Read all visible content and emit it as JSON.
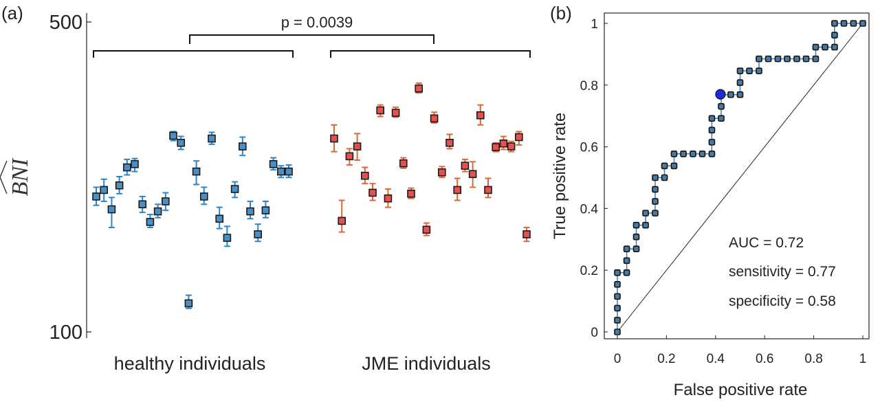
{
  "chart_data": [
    {
      "panel_label": "(a)",
      "type": "scatter",
      "ylabel": "BNI",
      "yscale": "log",
      "ylim": [
        100,
        500
      ],
      "yticks": [
        "100",
        "500"
      ],
      "categories": [
        "healthy individuals",
        "JME individuals"
      ],
      "comparison": "p = 0.0039",
      "colors": {
        "healthy": "#4a90c4",
        "healthy_bar": "#2a86cc",
        "jme": "#e55050",
        "jme_bar": "#dd6633"
      },
      "series": [
        {
          "group": "healthy",
          "points": [
            {
              "y": 202,
              "lo": 193,
              "hi": 212
            },
            {
              "y": 209,
              "lo": 197,
              "hi": 221
            },
            {
              "y": 189,
              "lo": 172,
              "hi": 201
            },
            {
              "y": 214,
              "lo": 205,
              "hi": 224
            },
            {
              "y": 235,
              "lo": 226,
              "hi": 245
            },
            {
              "y": 239,
              "lo": 230,
              "hi": 246
            },
            {
              "y": 194,
              "lo": 186,
              "hi": 202
            },
            {
              "y": 177,
              "lo": 172,
              "hi": 184
            },
            {
              "y": 187,
              "lo": 181,
              "hi": 194
            },
            {
              "y": 197,
              "lo": 188,
              "hi": 206
            },
            {
              "y": 277,
              "lo": 270,
              "hi": 283
            },
            {
              "y": 267,
              "lo": 258,
              "hi": 276
            },
            {
              "y": 116,
              "lo": 113,
              "hi": 121
            },
            {
              "y": 230,
              "lo": 215,
              "hi": 243
            },
            {
              "y": 202,
              "lo": 194,
              "hi": 212
            },
            {
              "y": 273,
              "lo": 265,
              "hi": 282
            },
            {
              "y": 180,
              "lo": 171,
              "hi": 191
            },
            {
              "y": 163,
              "lo": 156,
              "hi": 173
            },
            {
              "y": 210,
              "lo": 201,
              "hi": 218
            },
            {
              "y": 262,
              "lo": 250,
              "hi": 275
            },
            {
              "y": 187,
              "lo": 180,
              "hi": 197
            },
            {
              "y": 166,
              "lo": 160,
              "hi": 175
            },
            {
              "y": 188,
              "lo": 181,
              "hi": 197
            },
            {
              "y": 239,
              "lo": 232,
              "hi": 247
            },
            {
              "y": 230,
              "lo": 223,
              "hi": 237
            },
            {
              "y": 230,
              "lo": 223,
              "hi": 238
            }
          ]
        },
        {
          "group": "jme",
          "points": [
            {
              "y": 273,
              "lo": 255,
              "hi": 293
            },
            {
              "y": 178,
              "lo": 168,
              "hi": 198
            },
            {
              "y": 249,
              "lo": 238,
              "hi": 259
            },
            {
              "y": 262,
              "lo": 244,
              "hi": 280
            },
            {
              "y": 225,
              "lo": 216,
              "hi": 235
            },
            {
              "y": 206,
              "lo": 198,
              "hi": 216
            },
            {
              "y": 316,
              "lo": 306,
              "hi": 325
            },
            {
              "y": 200,
              "lo": 191,
              "hi": 210
            },
            {
              "y": 312,
              "lo": 305,
              "hi": 321
            },
            {
              "y": 240,
              "lo": 234,
              "hi": 247
            },
            {
              "y": 205,
              "lo": 200,
              "hi": 211
            },
            {
              "y": 354,
              "lo": 346,
              "hi": 364
            },
            {
              "y": 170,
              "lo": 165,
              "hi": 176
            },
            {
              "y": 303,
              "lo": 296,
              "hi": 313
            },
            {
              "y": 229,
              "lo": 223,
              "hi": 236
            },
            {
              "y": 267,
              "lo": 259,
              "hi": 279
            },
            {
              "y": 209,
              "lo": 198,
              "hi": 222
            },
            {
              "y": 237,
              "lo": 230,
              "hi": 245
            },
            {
              "y": 227,
              "lo": 212,
              "hi": 242
            },
            {
              "y": 308,
              "lo": 293,
              "hi": 325
            },
            {
              "y": 209,
              "lo": 201,
              "hi": 222
            },
            {
              "y": 261,
              "lo": 255,
              "hi": 267
            },
            {
              "y": 266,
              "lo": 258,
              "hi": 276
            },
            {
              "y": 262,
              "lo": 255,
              "hi": 269
            },
            {
              "y": 275,
              "lo": 264,
              "hi": 283
            },
            {
              "y": 166,
              "lo": 160,
              "hi": 172
            }
          ]
        }
      ]
    },
    {
      "panel_label": "(b)",
      "type": "line",
      "xlabel": "False positive rate",
      "ylabel": "True positive rate",
      "xlim": [
        0,
        1
      ],
      "ylim": [
        0,
        1
      ],
      "xticks": [
        "0",
        "0.2",
        "0.4",
        "0.6",
        "0.8",
        "1"
      ],
      "yticks": [
        "0",
        "0.2",
        "0.4",
        "0.6",
        "0.8",
        "1"
      ],
      "marker_color": "#4a7aa0",
      "highlight_color": "#1a2ee0",
      "highlight_point": {
        "x": 0.42,
        "y": 0.77
      },
      "annotations": [
        "AUC = 0.72",
        "sensitivity = 0.77",
        "specificity = 0.58"
      ],
      "roc": [
        [
          0,
          0
        ],
        [
          0,
          0.038
        ],
        [
          0,
          0.077
        ],
        [
          0,
          0.115
        ],
        [
          0,
          0.154
        ],
        [
          0,
          0.192
        ],
        [
          0.038,
          0.192
        ],
        [
          0.038,
          0.231
        ],
        [
          0.038,
          0.269
        ],
        [
          0.077,
          0.269
        ],
        [
          0.077,
          0.308
        ],
        [
          0.077,
          0.346
        ],
        [
          0.115,
          0.346
        ],
        [
          0.115,
          0.385
        ],
        [
          0.154,
          0.385
        ],
        [
          0.154,
          0.423
        ],
        [
          0.154,
          0.462
        ],
        [
          0.154,
          0.5
        ],
        [
          0.192,
          0.5
        ],
        [
          0.192,
          0.538
        ],
        [
          0.231,
          0.538
        ],
        [
          0.231,
          0.577
        ],
        [
          0.269,
          0.577
        ],
        [
          0.308,
          0.577
        ],
        [
          0.346,
          0.577
        ],
        [
          0.385,
          0.577
        ],
        [
          0.385,
          0.615
        ],
        [
          0.385,
          0.654
        ],
        [
          0.385,
          0.692
        ],
        [
          0.423,
          0.692
        ],
        [
          0.423,
          0.731
        ],
        [
          0.423,
          0.769
        ],
        [
          0.462,
          0.769
        ],
        [
          0.5,
          0.769
        ],
        [
          0.5,
          0.808
        ],
        [
          0.5,
          0.846
        ],
        [
          0.538,
          0.846
        ],
        [
          0.577,
          0.846
        ],
        [
          0.577,
          0.885
        ],
        [
          0.615,
          0.885
        ],
        [
          0.654,
          0.885
        ],
        [
          0.692,
          0.885
        ],
        [
          0.731,
          0.885
        ],
        [
          0.769,
          0.885
        ],
        [
          0.808,
          0.885
        ],
        [
          0.808,
          0.923
        ],
        [
          0.846,
          0.923
        ],
        [
          0.885,
          0.923
        ],
        [
          0.885,
          0.962
        ],
        [
          0.885,
          1.0
        ],
        [
          0.923,
          1.0
        ],
        [
          0.962,
          1.0
        ],
        [
          1.0,
          1.0
        ]
      ]
    }
  ]
}
